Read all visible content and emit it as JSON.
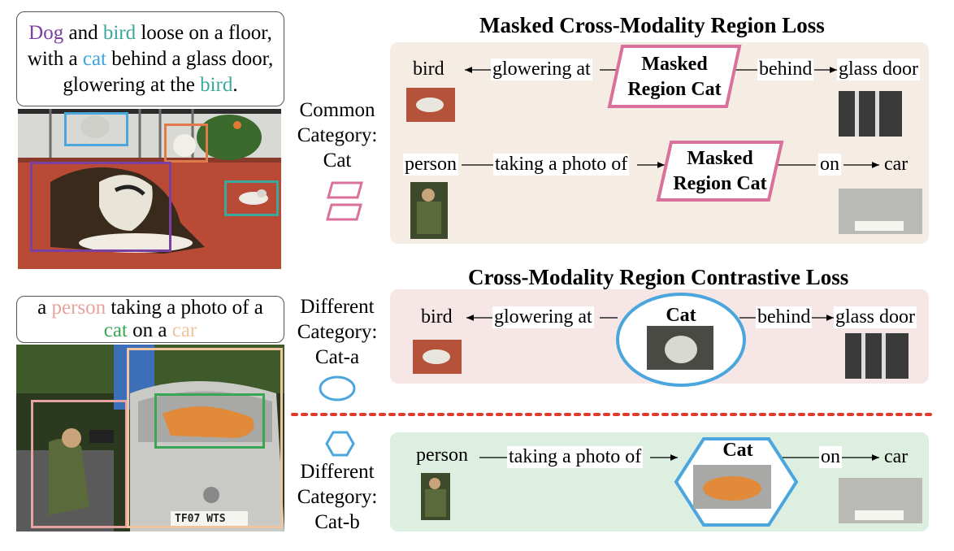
{
  "top_caption": {
    "line1": [
      {
        "t": "Dog",
        "c": "#7a3fa0"
      },
      {
        "t": " and ",
        "c": "#000"
      },
      {
        "t": "bird",
        "c": "#3aa89c"
      },
      {
        "t": " loose on a floor,",
        "c": "#000"
      }
    ],
    "line2": [
      {
        "t": "with a ",
        "c": "#000"
      },
      {
        "t": "cat",
        "c": "#3aa6e0"
      },
      {
        "t": " behind a glass door,",
        "c": "#000"
      }
    ],
    "line3": [
      {
        "t": "glowering at the ",
        "c": "#000"
      },
      {
        "t": "bird",
        "c": "#3aa89c"
      },
      {
        "t": ".",
        "c": "#000"
      }
    ]
  },
  "bottom_caption": {
    "line1": [
      {
        "t": "a ",
        "c": "#000"
      },
      {
        "t": "person",
        "c": "#e6a3a0"
      },
      {
        "t": " taking a photo of a",
        "c": "#000"
      }
    ],
    "line2": [
      {
        "t": "cat",
        "c": "#3aa655"
      },
      {
        "t": " on a ",
        "c": "#000"
      },
      {
        "t": "car",
        "c": "#f0c49e"
      }
    ]
  },
  "middle": {
    "common": [
      "Common",
      "Category:",
      "Cat"
    ],
    "diff_a": [
      "Different",
      "Category:",
      "Cat-a"
    ],
    "diff_b": [
      "Different",
      "Category:",
      "Cat-b"
    ]
  },
  "panel1": {
    "title": "Masked Cross-Modality Region Loss",
    "row1": {
      "subject": "bird",
      "predicate": "glowering at",
      "center": [
        "Masked",
        "Region Cat"
      ],
      "predicate2": "behind",
      "object": "glass door"
    },
    "row2": {
      "subject": "person",
      "predicate": "taking a photo of",
      "center": [
        "Masked",
        "Region Cat"
      ],
      "predicate2": "on",
      "object": "car"
    }
  },
  "panel2": {
    "title": "Cross-Modality Region Contrastive Loss",
    "row1": {
      "subject": "bird",
      "predicate": "glowering at",
      "center": "Cat",
      "predicate2": "behind",
      "object": "glass door"
    },
    "row2": {
      "subject": "person",
      "predicate": "taking a photo of",
      "center": "Cat",
      "predicate2": "on",
      "object": "car"
    }
  },
  "car_plate": "TF07 WTS",
  "colors": {
    "pink": "#d9719b",
    "blue": "#4ba6dd",
    "red_dot": "#e03a2e",
    "panel1_bg": "#f5ede3",
    "panel2_bg": "#f7e6e6",
    "panel3_bg": "#dcefe1"
  }
}
